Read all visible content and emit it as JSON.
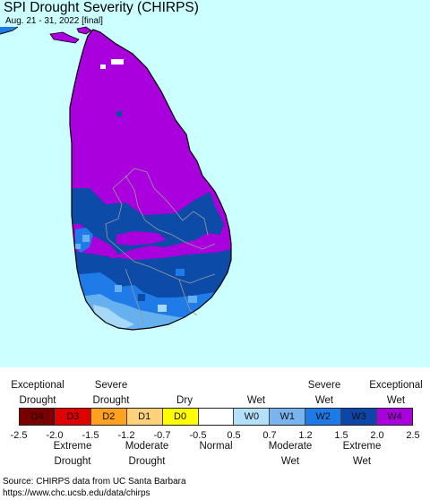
{
  "map": {
    "title": "SPI Drought Severity (CHIRPS)",
    "subtitle": "Aug. 21 - 31, 2022 [final]",
    "colors": {
      "ocean": "#ccffff",
      "land_dominant": "#aa00dd",
      "wet_w3": "#0c4ba8",
      "wet_w2": "#1e7be8",
      "wet_w1": "#66b0f0",
      "wet_w0": "#a8d8f8",
      "boundary": "#9a9a9a"
    }
  },
  "legend": {
    "top_labels": [
      {
        "id": "exceptional-drought",
        "lines": [
          "Exceptional",
          "Drought"
        ]
      },
      {
        "id": "severe-drought",
        "lines": [
          "Severe",
          "Drought"
        ]
      },
      {
        "id": "dry",
        "lines": [
          "Dry"
        ]
      },
      {
        "id": "wet",
        "lines": [
          "Wet"
        ]
      },
      {
        "id": "severe-wet",
        "lines": [
          "Severe",
          "Wet"
        ]
      },
      {
        "id": "exceptional-wet",
        "lines": [
          "Exceptional",
          "Wet"
        ]
      }
    ],
    "categories": [
      {
        "code": "D4",
        "color": "#7a0000"
      },
      {
        "code": "D3",
        "color": "#e00000"
      },
      {
        "code": "D2",
        "color": "#ffa020"
      },
      {
        "code": "D1",
        "color": "#ffd27a"
      },
      {
        "code": "D0",
        "color": "#ffff00"
      },
      {
        "code": "",
        "color": "#ffffff"
      },
      {
        "code": "W0",
        "color": "#b4e0fa"
      },
      {
        "code": "W1",
        "color": "#78b4f0"
      },
      {
        "code": "W2",
        "color": "#1e7ae6"
      },
      {
        "code": "W3",
        "color": "#0c46a8"
      },
      {
        "code": "W4",
        "color": "#aa00dd"
      }
    ],
    "ticks": [
      "-2.5",
      "-2.0",
      "-1.5",
      "-1.2",
      "-0.7",
      "-0.5",
      "0.5",
      "0.7",
      "1.2",
      "1.5",
      "2.0",
      "2.5"
    ],
    "bottom_labels": [
      {
        "id": "extreme-drought",
        "lines": [
          "Extreme",
          "Drought"
        ]
      },
      {
        "id": "moderate-drought",
        "lines": [
          "Moderate",
          "Drought"
        ]
      },
      {
        "id": "normal",
        "lines": [
          "Normal"
        ]
      },
      {
        "id": "moderate-wet",
        "lines": [
          "Moderate",
          "Wet"
        ]
      },
      {
        "id": "extreme-wet",
        "lines": [
          "Extreme",
          "Wet"
        ]
      }
    ]
  },
  "source": {
    "line1": "Source: CHIRPS data from UC Santa Barbara",
    "line2": "https://www.chc.ucsb.edu/data/chirps"
  }
}
